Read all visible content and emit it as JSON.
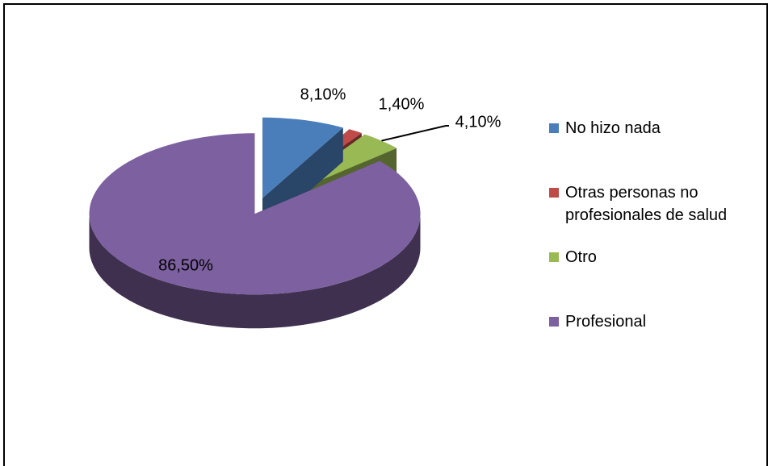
{
  "chart_data": {
    "type": "pie3d",
    "categories": [
      "No hizo nada",
      "Otras personas no profesionales de salud",
      "Otro",
      "Profesional"
    ],
    "values": [
      8.1,
      1.4,
      4.1,
      86.5
    ],
    "value_labels": [
      "8,10%",
      "1,40%",
      "4,10%",
      "86,50%"
    ],
    "colors": [
      "#4a7ebb",
      "#be4b48",
      "#98b954",
      "#7d60a0"
    ],
    "legend": "right"
  }
}
